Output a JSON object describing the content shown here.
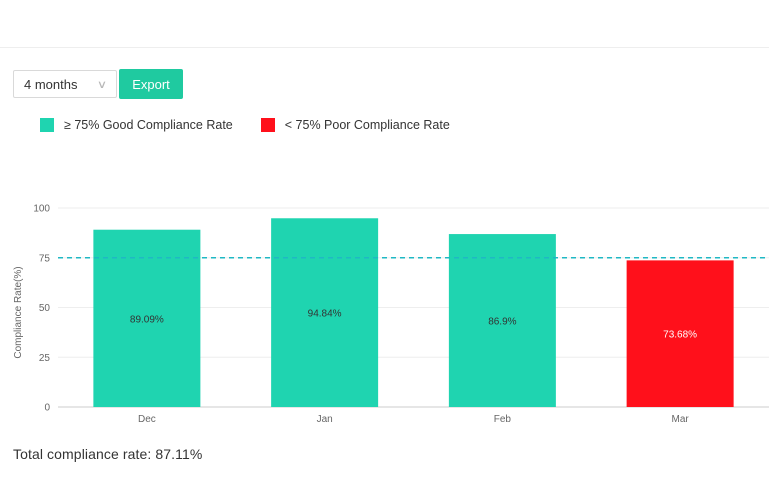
{
  "controls": {
    "period_value": "4 months",
    "export_label": "Export"
  },
  "legend": {
    "good_label": "≥ 75% Good Compliance Rate",
    "poor_label": "< 75% Poor Compliance Rate"
  },
  "colors": {
    "good": "#1fd4b0",
    "poor": "#ff101b",
    "threshold": "#1fb8c4",
    "accent": "#1fcaa0"
  },
  "icons": {
    "period_chevron": "chevron-down-icon"
  },
  "summary": {
    "total_text": "Total compliance rate: 87.11%"
  },
  "chart_data": {
    "type": "bar",
    "categories": [
      "Dec",
      "Jan",
      "Feb",
      "Mar"
    ],
    "values": [
      89.09,
      94.84,
      86.9,
      73.68
    ],
    "data_labels": [
      "89.09%",
      "94.84%",
      "86.9%",
      "73.68%"
    ],
    "title": "",
    "xlabel": "",
    "ylabel": "Compliance Rate(%)",
    "ylim": [
      0,
      100
    ],
    "yticks": [
      0,
      25,
      50,
      75,
      100
    ],
    "threshold": 75,
    "grid": true,
    "legend_position": "top-left"
  }
}
